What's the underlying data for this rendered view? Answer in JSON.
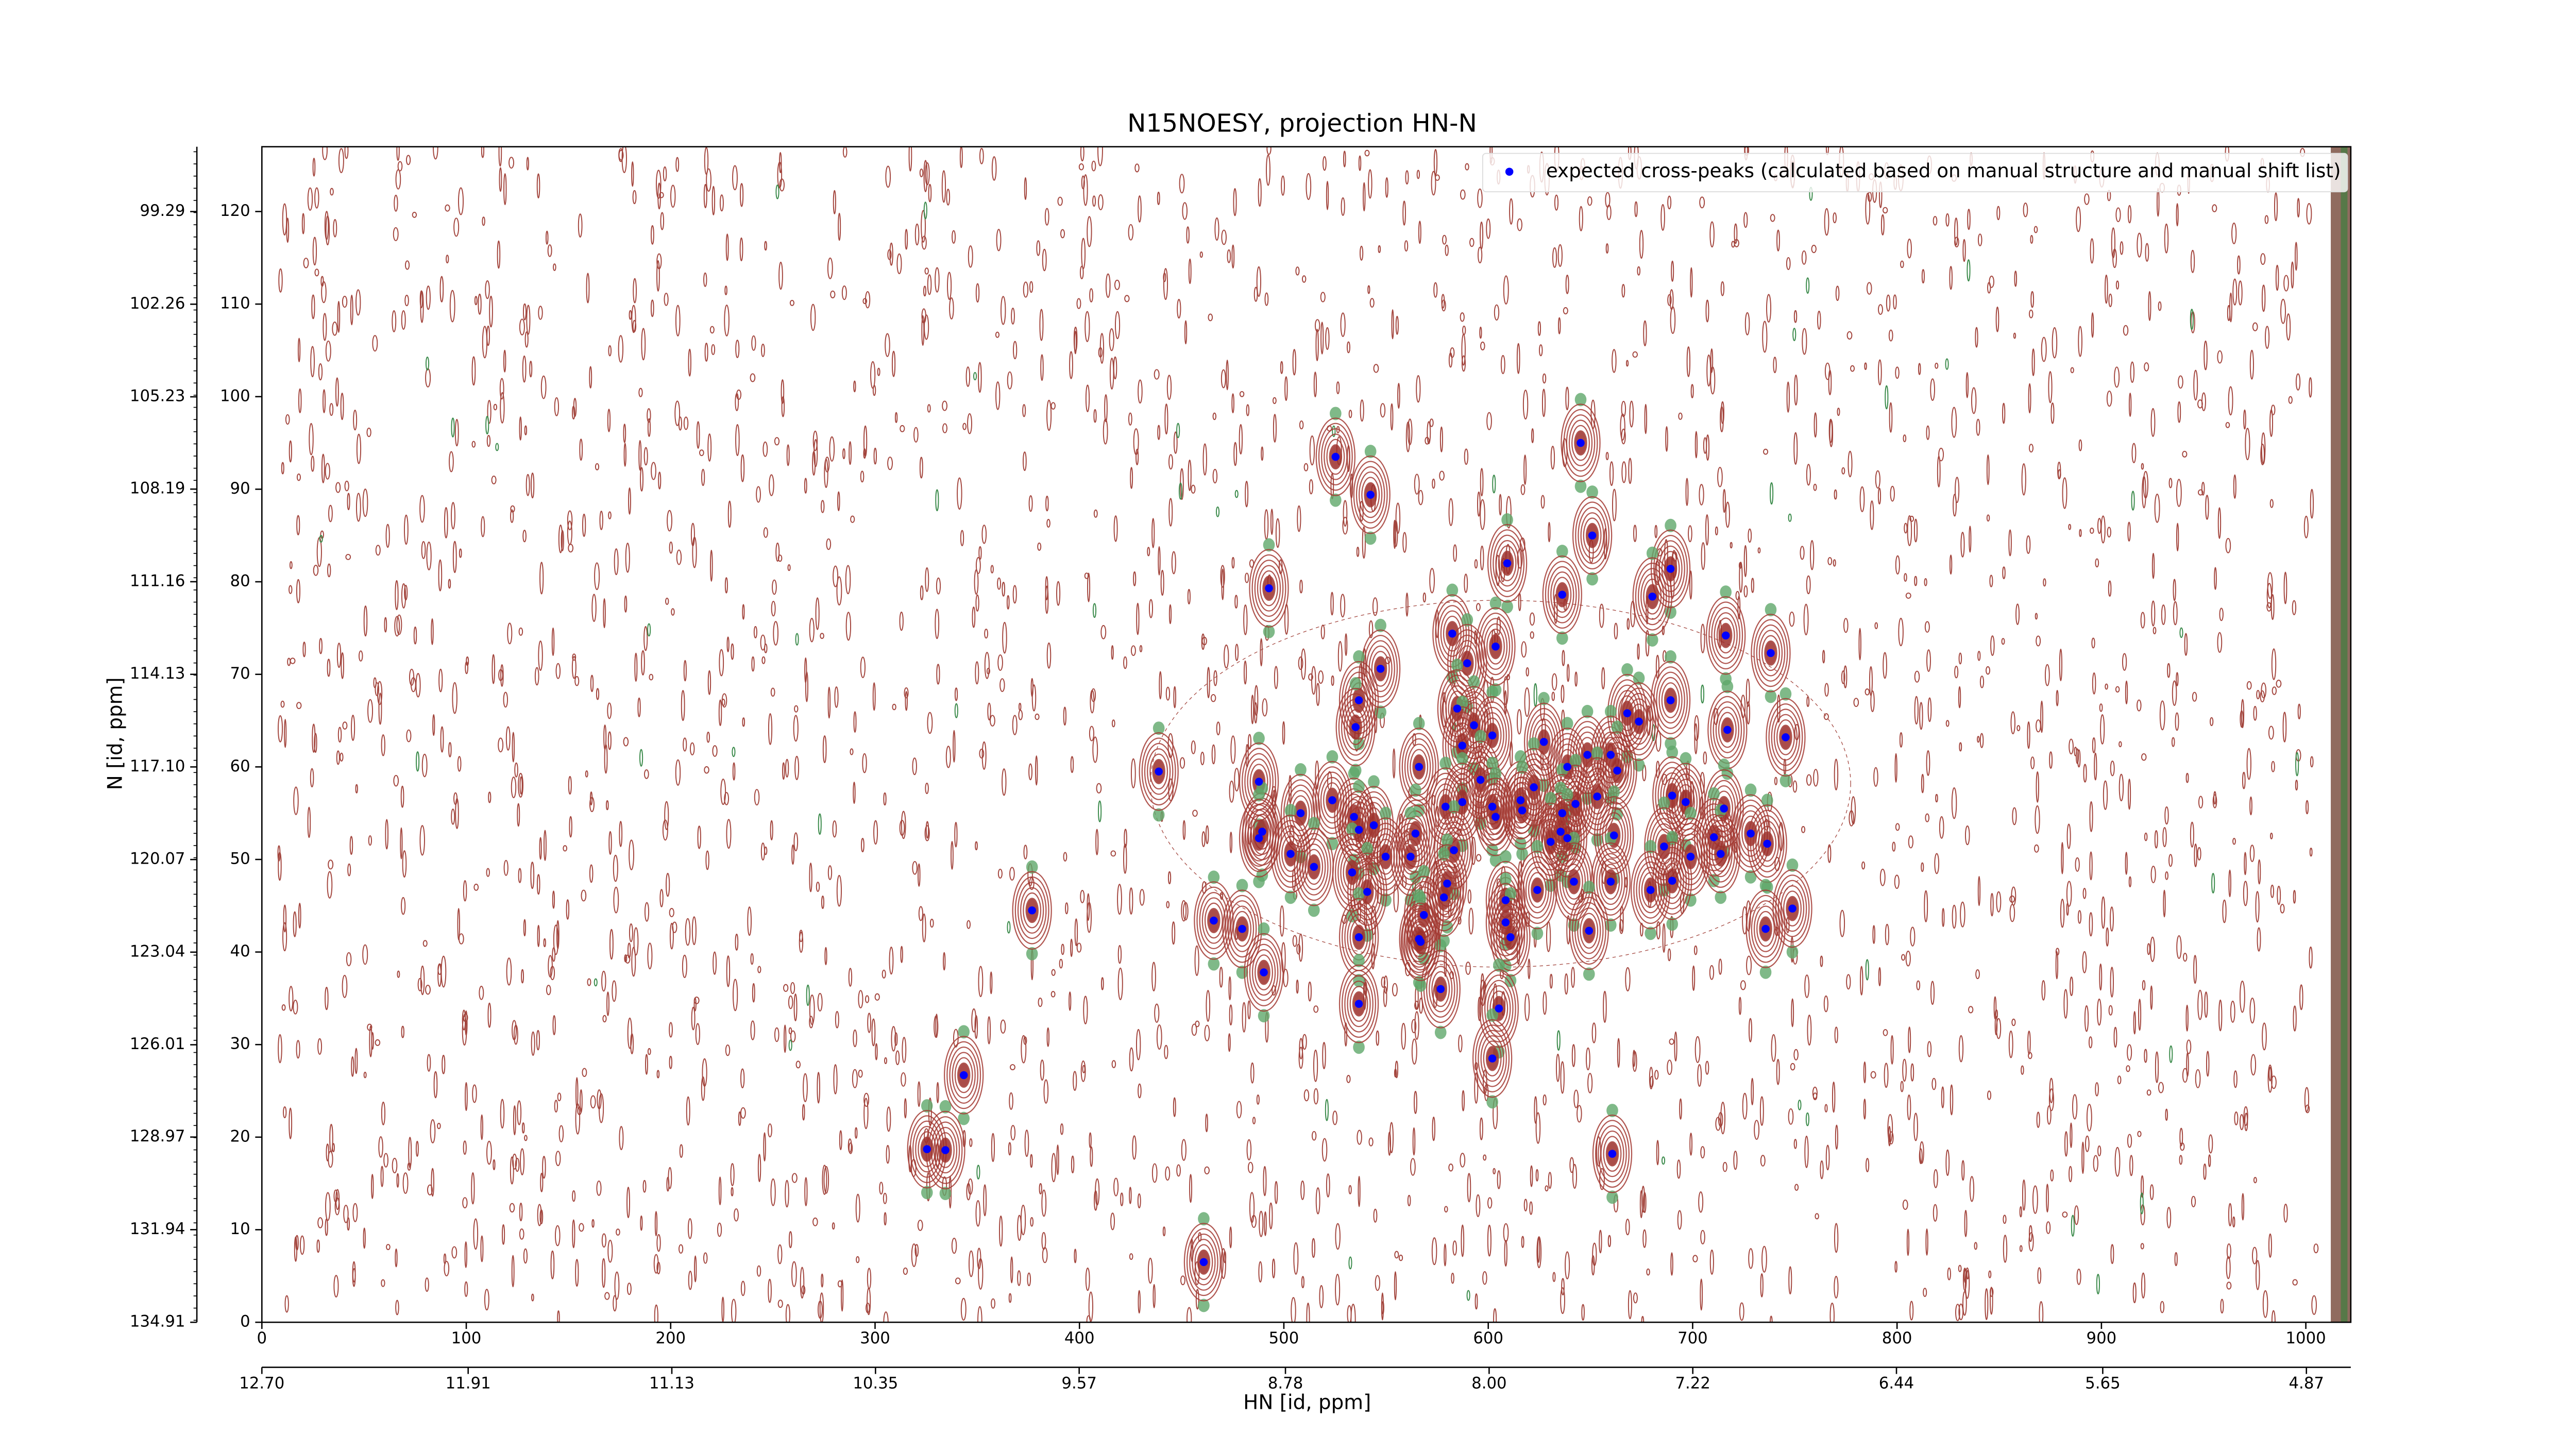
{
  "chart_data": {
    "type": "scatter",
    "title": "N15NOESY, projection HN-N",
    "xlabel": "HN [id, ppm]",
    "ylabel": "N [id, ppm]",
    "xlim": [
      0,
      1022
    ],
    "ylim": [
      0,
      127
    ],
    "xticks": [
      0,
      100,
      200,
      300,
      400,
      500,
      600,
      700,
      800,
      900,
      1000
    ],
    "yticks": [
      0,
      10,
      20,
      30,
      40,
      50,
      60,
      70,
      80,
      90,
      100,
      110,
      120
    ],
    "x2lim": [
      12.7,
      4.7
    ],
    "x2ticks": [
      {
        "value": 12.7,
        "label": "12.70"
      },
      11.91,
      11.13,
      10.35,
      9.57,
      8.78,
      {
        "value": 8.0,
        "label": "8.00"
      },
      7.22,
      6.44,
      5.65,
      4.87
    ],
    "y2lim": [
      134.91,
      97.21
    ],
    "y2ticks": [
      134.91,
      131.94,
      128.97,
      126.01,
      123.04,
      120.07,
      {
        "value": 117.1,
        "label": "117.10"
      },
      114.13,
      111.16,
      108.19,
      105.23,
      102.26,
      99.29
    ],
    "legend": "upper right",
    "series": [
      {
        "name": "expected cross-peaks (calculated based on manual structure and manual shift list)",
        "color": "#0000ff",
        "x": [
          525.3,
          542.4,
          645.2,
          650.9,
          609.3,
          689.2,
          492.7,
          636.2,
          680.3,
          582.4,
          716.2,
          738.2,
          547.3,
          589.7,
          603.6,
          536.7,
          535.1,
          584.8,
          593.0,
          602.0,
          689.2,
          668.0,
          673.7,
          717.0,
          745.5,
          627.2,
          587.3,
          648.5,
          659.9,
          638.7,
          663.1,
          566.1,
          438.8,
          487.8,
          596.2,
          622.3,
          615.8,
          690.0,
          696.6,
          523.7,
          653.3,
          579.1,
          587.3,
          602.0,
          616.6,
          642.7,
          508.2,
          534.3,
          544.0,
          636.2,
          715.3,
          728.4,
          710.4,
          536.7,
          564.4,
          489.4,
          487.8,
          635.4,
          630.5,
          638.7,
          661.5,
          603.6,
          736.5,
          699.0,
          686.0,
          713.7,
          583.2,
          503.3,
          514.7,
          549.8,
          533.4,
          562.0,
          540.8,
          659.9,
          641.9,
          579.9,
          624.0,
          679.4,
          690.0,
          578.3,
          608.5,
          376.8,
          568.5,
          465.7,
          479.6,
          608.5,
          536.7,
          649.3,
          566.1,
          735.7,
          748.8,
          610.9,
          490.2,
          576.7,
          536.7,
          605.2,
          343.4,
          602.0,
          325.4,
          334.4,
          660.7,
          460.8,
          566.9
        ],
        "values": [
          93.5,
          89.4,
          95.0,
          85.0,
          82.0,
          81.4,
          79.3,
          78.6,
          78.4,
          74.4,
          74.2,
          72.3,
          70.6,
          71.2,
          73.0,
          67.2,
          64.3,
          66.3,
          64.5,
          63.4,
          67.2,
          65.8,
          64.9,
          64.0,
          63.2,
          62.7,
          62.3,
          61.3,
          61.3,
          60.0,
          59.6,
          60.0,
          59.5,
          58.4,
          58.6,
          57.8,
          56.4,
          56.9,
          56.2,
          56.4,
          56.8,
          55.7,
          56.2,
          55.7,
          55.3,
          56.0,
          55.0,
          54.6,
          53.7,
          55.0,
          55.5,
          52.8,
          52.4,
          53.2,
          52.8,
          53.0,
          52.3,
          53.0,
          51.9,
          52.3,
          52.6,
          54.6,
          51.7,
          50.3,
          51.4,
          50.6,
          51.0,
          50.6,
          49.2,
          50.3,
          48.6,
          50.3,
          46.5,
          47.6,
          47.6,
          47.4,
          46.7,
          46.7,
          47.7,
          45.9,
          45.6,
          44.5,
          44.0,
          43.4,
          42.5,
          43.2,
          41.6,
          42.3,
          41.4,
          42.5,
          44.7,
          41.6,
          37.8,
          36.0,
          34.4,
          33.9,
          26.7,
          28.5,
          18.7,
          18.6,
          18.2,
          6.5,
          41.1
        ]
      }
    ]
  }
}
